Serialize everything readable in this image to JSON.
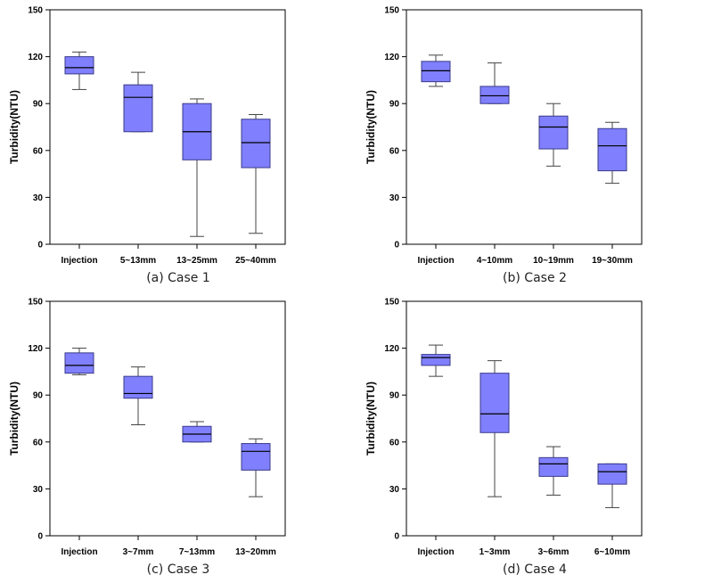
{
  "box_fill": "#8080ff",
  "box_stroke": "#3a3a8a",
  "chart_data": [
    {
      "type": "box",
      "caption": "(a) Case 1",
      "ylabel": "Turbidity(NTU)",
      "ylim": [
        0,
        150
      ],
      "yticks": [
        0,
        30,
        60,
        90,
        120,
        150
      ],
      "categories": [
        "Injection",
        "5~13mm",
        "13~25mm",
        "25~40mm"
      ],
      "boxes": [
        {
          "min": 99,
          "q1": 109,
          "median": 113,
          "q3": 120,
          "max": 123
        },
        {
          "min": 72,
          "q1": 72,
          "median": 94,
          "q3": 102,
          "max": 110
        },
        {
          "min": 5,
          "q1": 54,
          "median": 72,
          "q3": 90,
          "max": 93
        },
        {
          "min": 7,
          "q1": 49,
          "median": 65,
          "q3": 80,
          "max": 83
        }
      ]
    },
    {
      "type": "box",
      "caption": "(b) Case 2",
      "ylabel": "Turbidity(NTU)",
      "ylim": [
        0,
        150
      ],
      "yticks": [
        0,
        30,
        60,
        90,
        120,
        150
      ],
      "categories": [
        "Injection",
        "4~10mm",
        "10~19mm",
        "19~30mm"
      ],
      "boxes": [
        {
          "min": 101,
          "q1": 104,
          "median": 111,
          "q3": 117,
          "max": 121
        },
        {
          "min": 90,
          "q1": 90,
          "median": 95,
          "q3": 101,
          "max": 116
        },
        {
          "min": 50,
          "q1": 61,
          "median": 75,
          "q3": 82,
          "max": 90
        },
        {
          "min": 39,
          "q1": 47,
          "median": 63,
          "q3": 74,
          "max": 78
        }
      ]
    },
    {
      "type": "box",
      "caption": "(c) Case 3",
      "ylabel": "Turbidity(NTU)",
      "ylim": [
        0,
        150
      ],
      "yticks": [
        0,
        30,
        60,
        90,
        120,
        150
      ],
      "categories": [
        "Injection",
        "3~7mm",
        "7~13mm",
        "13~20mm"
      ],
      "boxes": [
        {
          "min": 103,
          "q1": 104,
          "median": 109,
          "q3": 117,
          "max": 120
        },
        {
          "min": 71,
          "q1": 88,
          "median": 91,
          "q3": 102,
          "max": 108
        },
        {
          "min": 60,
          "q1": 60,
          "median": 65,
          "q3": 70,
          "max": 73
        },
        {
          "min": 25,
          "q1": 42,
          "median": 54,
          "q3": 59,
          "max": 62
        }
      ]
    },
    {
      "type": "box",
      "caption": "(d) Case 4",
      "ylabel": "Turbidity(NTU)",
      "ylim": [
        0,
        150
      ],
      "yticks": [
        0,
        30,
        60,
        90,
        120,
        150
      ],
      "categories": [
        "Injection",
        "1~3mm",
        "3~6mm",
        "6~10mm"
      ],
      "boxes": [
        {
          "min": 102,
          "q1": 109,
          "median": 114,
          "q3": 116,
          "max": 122
        },
        {
          "min": 25,
          "q1": 66,
          "median": 78,
          "q3": 104,
          "max": 112
        },
        {
          "min": 26,
          "q1": 38,
          "median": 46,
          "q3": 50,
          "max": 57
        },
        {
          "min": 18,
          "q1": 33,
          "median": 41,
          "q3": 46,
          "max": 46
        }
      ]
    }
  ]
}
